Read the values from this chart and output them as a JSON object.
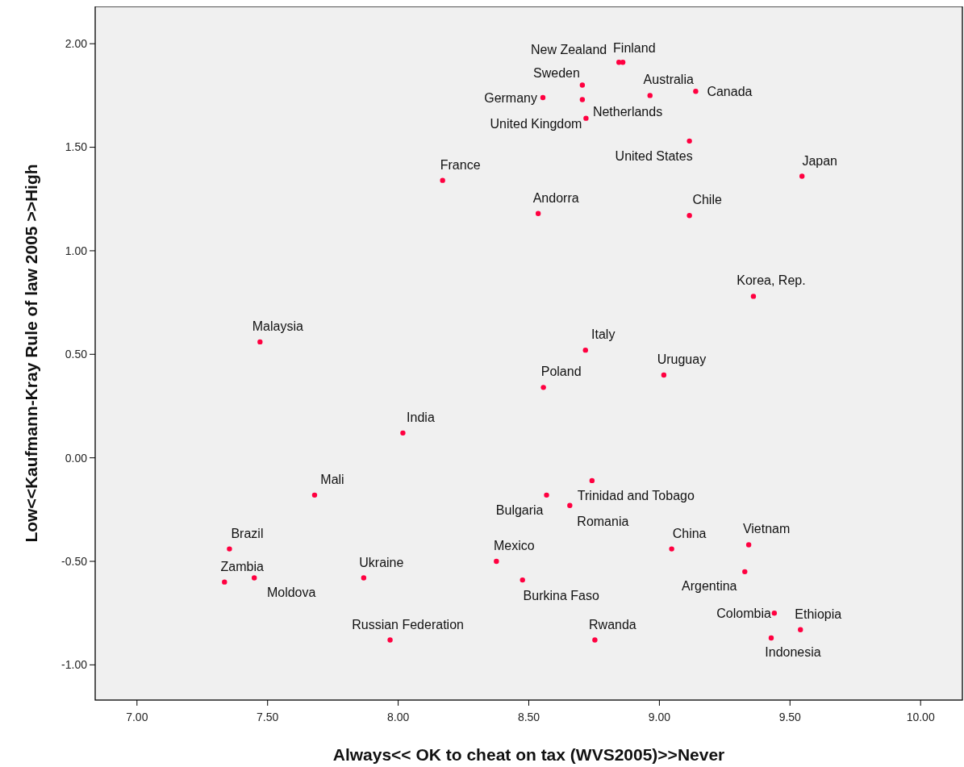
{
  "chart_data": {
    "type": "scatter",
    "xlabel": "Always<< OK to cheat on tax (WVS2005)>>Never",
    "ylabel": "Low<<Kaufmann-Kray Rule of law 2005 >>High",
    "xlim": [
      6.84,
      10.16
    ],
    "ylim": [
      -1.17,
      2.18
    ],
    "xticks": [
      {
        "value": 7,
        "label": "7.00"
      },
      {
        "value": 7.5,
        "label": "7.50"
      },
      {
        "value": 8,
        "label": "8.00"
      },
      {
        "value": 8.5,
        "label": "8.50"
      },
      {
        "value": 9,
        "label": "9.00"
      },
      {
        "value": 9.5,
        "label": "9.50"
      },
      {
        "value": 10,
        "label": "10.00"
      }
    ],
    "yticks": [
      {
        "value": -1,
        "label": "-1.00"
      },
      {
        "value": -0.5,
        "label": "-0.50"
      },
      {
        "value": 0,
        "label": "0.00"
      },
      {
        "value": 0.5,
        "label": "0.50"
      },
      {
        "value": 1,
        "label": "1.00"
      },
      {
        "value": 1.5,
        "label": "1.50"
      },
      {
        "value": 2,
        "label": "2.00"
      }
    ],
    "grid": false,
    "marker": "circle",
    "series": [
      {
        "color": "#ff0040",
        "x": [
          8.845,
          8.86,
          8.705,
          8.554,
          8.705,
          8.719,
          8.964,
          9.139,
          9.115,
          8.17,
          8.536,
          9.115,
          9.546,
          9.36,
          7.471,
          8.717,
          9.017,
          8.556,
          8.018,
          7.68,
          7.354,
          7.335,
          7.449,
          7.868,
          7.969,
          8.742,
          8.568,
          8.657,
          9.047,
          9.342,
          8.376,
          9.327,
          8.476,
          9.44,
          9.54,
          9.428,
          8.753
        ],
        "values": [
          1.91,
          1.91,
          1.8,
          1.74,
          1.73,
          1.64,
          1.75,
          1.77,
          1.53,
          1.34,
          1.18,
          1.17,
          1.36,
          0.78,
          0.56,
          0.52,
          0.4,
          0.34,
          0.12,
          -0.18,
          -0.44,
          -0.6,
          -0.58,
          -0.58,
          -0.88,
          -0.11,
          -0.18,
          -0.23,
          -0.44,
          -0.42,
          -0.5,
          -0.55,
          -0.59,
          -0.75,
          -0.83,
          -0.87,
          -0.88
        ]
      }
    ],
    "annotations": [
      {
        "text": "New Zealand",
        "x": 8.845,
        "y": 1.91
      },
      {
        "text": "Finland",
        "x": 8.86,
        "y": 1.91
      },
      {
        "text": "Sweden",
        "x": 8.705,
        "y": 1.8
      },
      {
        "text": "Germany",
        "x": 8.554,
        "y": 1.74
      },
      {
        "text": "Netherlands",
        "x": 8.705,
        "y": 1.73
      },
      {
        "text": "United Kingdom",
        "x": 8.719,
        "y": 1.64
      },
      {
        "text": "Australia",
        "x": 8.964,
        "y": 1.75
      },
      {
        "text": "Canada",
        "x": 9.139,
        "y": 1.77
      },
      {
        "text": "United States",
        "x": 9.115,
        "y": 1.53
      },
      {
        "text": "France",
        "x": 8.17,
        "y": 1.34
      },
      {
        "text": "Andorra",
        "x": 8.536,
        "y": 1.18
      },
      {
        "text": "Chile",
        "x": 9.115,
        "y": 1.17
      },
      {
        "text": "Japan",
        "x": 9.546,
        "y": 1.36
      },
      {
        "text": "Korea, Rep.",
        "x": 9.36,
        "y": 0.78
      },
      {
        "text": "Malaysia",
        "x": 7.471,
        "y": 0.56
      },
      {
        "text": "Italy",
        "x": 8.717,
        "y": 0.52
      },
      {
        "text": "Uruguay",
        "x": 9.017,
        "y": 0.4
      },
      {
        "text": "Poland",
        "x": 8.556,
        "y": 0.34
      },
      {
        "text": "India",
        "x": 8.018,
        "y": 0.12
      },
      {
        "text": "Mali",
        "x": 7.68,
        "y": -0.18
      },
      {
        "text": "Brazil",
        "x": 7.354,
        "y": -0.44
      },
      {
        "text": "Zambia",
        "x": 7.335,
        "y": -0.6
      },
      {
        "text": "Moldova",
        "x": 7.449,
        "y": -0.58
      },
      {
        "text": "Ukraine",
        "x": 7.868,
        "y": -0.58
      },
      {
        "text": "Russian Federation",
        "x": 7.969,
        "y": -0.88
      },
      {
        "text": "Trinidad and Tobago",
        "x": 8.742,
        "y": -0.11
      },
      {
        "text": "Bulgaria",
        "x": 8.568,
        "y": -0.18
      },
      {
        "text": "Romania",
        "x": 8.657,
        "y": -0.23
      },
      {
        "text": "China",
        "x": 9.047,
        "y": -0.44
      },
      {
        "text": "Vietnam",
        "x": 9.342,
        "y": -0.42
      },
      {
        "text": "Mexico",
        "x": 8.376,
        "y": -0.5
      },
      {
        "text": "Argentina",
        "x": 9.327,
        "y": -0.55
      },
      {
        "text": "Burkina Faso",
        "x": 8.476,
        "y": -0.59
      },
      {
        "text": "Colombia",
        "x": 9.44,
        "y": -0.75
      },
      {
        "text": "Ethiopia",
        "x": 9.54,
        "y": -0.83
      },
      {
        "text": "Indonesia",
        "x": 9.428,
        "y": -0.87
      },
      {
        "text": "Rwanda",
        "x": 8.753,
        "y": -0.88
      }
    ]
  }
}
